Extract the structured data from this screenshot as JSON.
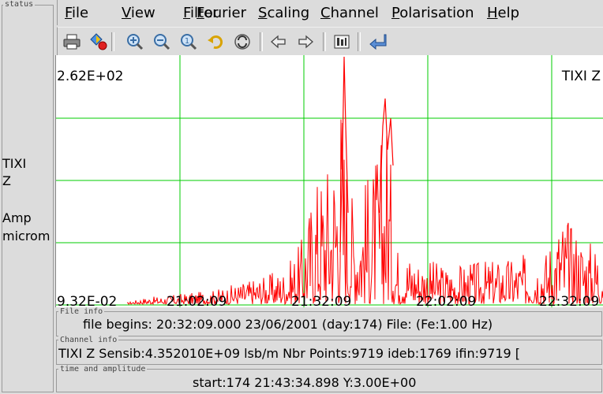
{
  "status": {
    "frame_title": "status",
    "lines": [
      "TIXI",
      "Z",
      "",
      "Amp",
      "microm"
    ]
  },
  "menu": {
    "items": [
      {
        "key": "F",
        "rest": "ile"
      },
      {
        "key": "V",
        "rest": "iew"
      },
      {
        "key": "F",
        "rest": "ilter"
      },
      {
        "key": "F",
        "rest": "ourier"
      },
      {
        "key": "S",
        "rest": "caling"
      },
      {
        "key": "C",
        "rest": "hannel"
      },
      {
        "key": "P",
        "rest": "olarisation"
      },
      {
        "key": "H",
        "rest": "elp"
      }
    ]
  },
  "toolbar": {
    "icons": [
      "print-icon",
      "colors-icon",
      "zoom-in-icon",
      "zoom-out-icon",
      "zoom-fit-icon",
      "undo-icon",
      "refresh-icon",
      "arrow-left-icon",
      "arrow-right-icon",
      "settings-icon",
      "return-icon"
    ]
  },
  "plot": {
    "y_max_label": "2.62E+02",
    "y_min_label": "9.32E-02",
    "channel_label": "TIXI Z",
    "x_ticks": [
      "21:02:09",
      "21:32:09",
      "22:02:09",
      "22:32:09"
    ],
    "grid_color": "#00cc00",
    "trace_color": "#ff0000"
  },
  "file_info": {
    "title": "File info",
    "text": "file begins: 20:32:09.000   23/06/2001 (day:174)   File: (Fe:1.00 Hz)"
  },
  "channel_info": {
    "title": "Channel info",
    "text": "TIXI Z Sensib:4.352010E+09 lsb/m  Nbr Points:9719   ideb:1769  ifin:9719  ["
  },
  "time_amp": {
    "title": "time and amplitude",
    "text": "start:174 21:43:34.898  Y:3.00E+00"
  }
}
